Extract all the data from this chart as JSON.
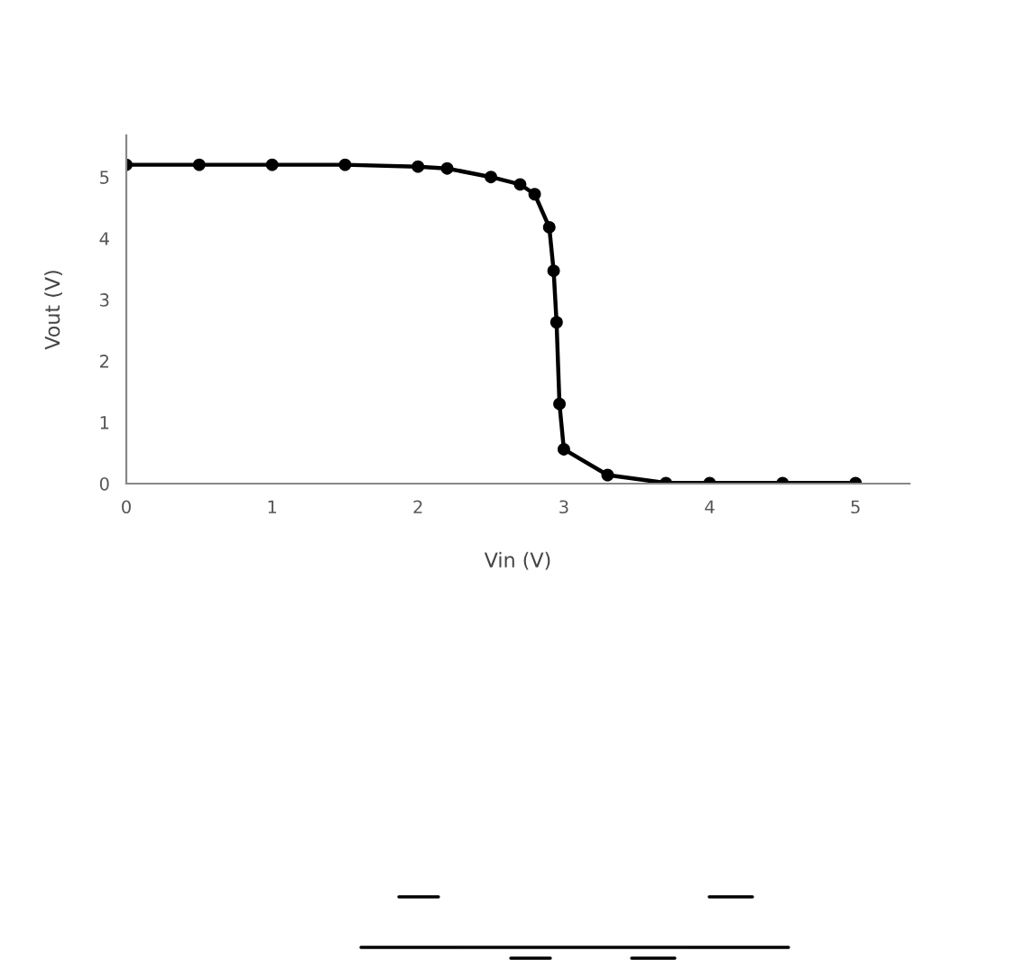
{
  "chart_data": {
    "type": "line",
    "xlabel": "Vin (V)",
    "ylabel": "Vout (V)",
    "x": [
      0,
      0.5,
      1,
      1.5,
      2,
      2.2,
      2.5,
      2.7,
      2.8,
      2.9,
      2.93,
      2.95,
      2.97,
      3.0,
      3.3,
      3.7,
      4,
      4.5,
      5
    ],
    "series": [
      {
        "color": "#000000",
        "values": [
          5.2,
          5.2,
          5.2,
          5.2,
          5.17,
          5.14,
          5.0,
          4.88,
          4.72,
          4.18,
          3.47,
          2.63,
          1.3,
          0.56,
          0.14,
          0.01,
          0.01,
          0.01,
          0.01
        ]
      }
    ],
    "xlim": [
      0,
      5.37
    ],
    "ylim": [
      0,
      5.68
    ],
    "xticks": [
      0,
      1,
      2,
      3,
      4,
      5
    ],
    "yticks": [
      0,
      1,
      2,
      3,
      4,
      5
    ],
    "marker": "circle",
    "line_style": "solid",
    "grid": false
  }
}
